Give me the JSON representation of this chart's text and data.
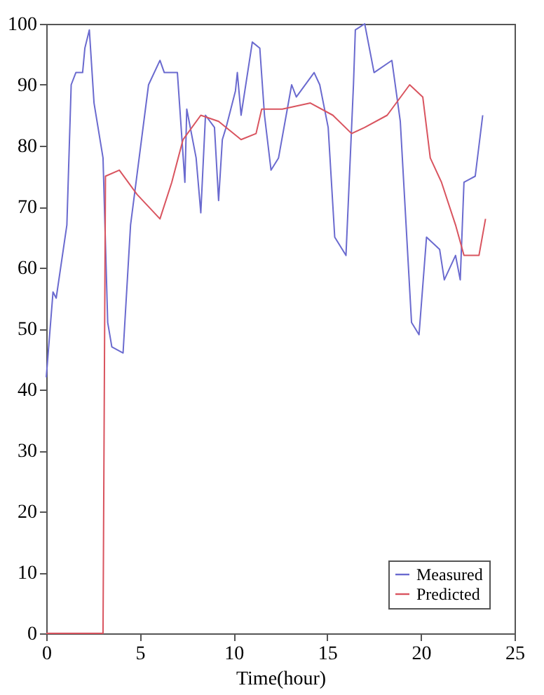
{
  "chart_data": {
    "type": "line",
    "xlabel": "Time(hour)",
    "xlim": [
      0,
      25
    ],
    "xticks": [
      0,
      5,
      10,
      15,
      20,
      25
    ],
    "ylim": [
      0,
      100
    ],
    "yticks": [
      0,
      10,
      20,
      30,
      40,
      50,
      60,
      70,
      80,
      90,
      100
    ],
    "legend": "bottom right",
    "grid": false,
    "marker": "none",
    "line_style": "solid",
    "series": [
      {
        "name": "Measured",
        "color": "#6a6acf",
        "x": [
          0,
          0.36,
          0.53,
          1.1,
          1.33,
          1.58,
          1.94,
          2.06,
          2.3,
          2.55,
          3.03,
          3.28,
          3.5,
          4.1,
          4.5,
          5.46,
          6.07,
          6.3,
          7.0,
          7.4,
          7.5,
          8.0,
          8.25,
          8.5,
          8.98,
          9.2,
          9.4,
          9.6,
          10.1,
          10.2,
          10.4,
          11.0,
          11.4,
          11.65,
          12.0,
          12.4,
          13.1,
          13.35,
          14.3,
          14.6,
          15.05,
          15.4,
          16.0,
          16.4,
          16.5,
          17.0,
          17.5,
          18.45,
          18.9,
          19.5,
          19.9,
          20.3,
          21.0,
          21.25,
          21.85,
          22.1,
          22.3,
          22.9,
          23.3
        ],
        "values": [
          42,
          56,
          55,
          67,
          90,
          92,
          92,
          96,
          99,
          87,
          78,
          51,
          47,
          46,
          67,
          90,
          94,
          92,
          92,
          74,
          86,
          78,
          69,
          85,
          83,
          71,
          81,
          83,
          89,
          92,
          85,
          97,
          96,
          85,
          76,
          78,
          90,
          88,
          92,
          90,
          83,
          65,
          62,
          90,
          99,
          100,
          92,
          94,
          84,
          51,
          49,
          65,
          63,
          58,
          62,
          58,
          74,
          75,
          85
        ]
      },
      {
        "name": "Predicted",
        "color": "#d9545f",
        "x": [
          0,
          3.03,
          3.16,
          3.9,
          4.85,
          6.07,
          6.7,
          7.3,
          8.25,
          9.2,
          10.4,
          11.2,
          11.5,
          12.6,
          14.1,
          15.3,
          16.3,
          17.0,
          18.2,
          19.4,
          20.1,
          20.5,
          21.1,
          21.85,
          22.3,
          23.1,
          23.45
        ],
        "values": [
          0,
          0,
          75,
          76,
          72,
          68,
          74,
          81,
          85,
          84,
          81,
          82,
          86,
          86,
          87,
          85,
          82,
          83,
          85,
          90,
          88,
          78,
          74,
          67,
          62,
          62,
          68
        ]
      }
    ]
  }
}
